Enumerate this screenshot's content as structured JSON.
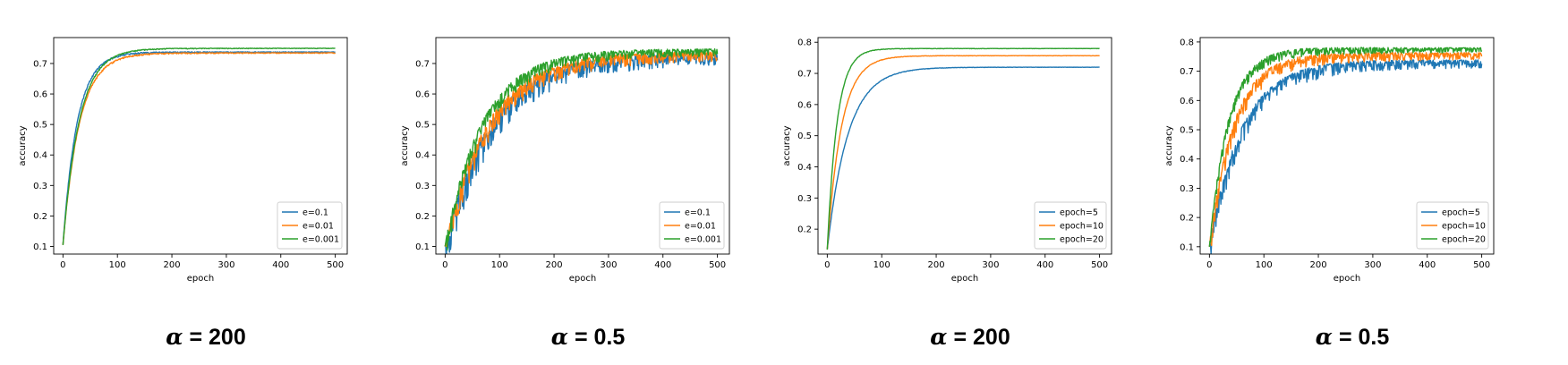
{
  "chart_data": [
    {
      "type": "line",
      "caption": {
        "symbol": "α",
        "text": " = 200"
      },
      "xlabel": "epoch",
      "ylabel": "accuracy",
      "xlim": [
        -17,
        522
      ],
      "ylim": [
        0.075,
        0.785
      ],
      "xticks": [
        0,
        100,
        200,
        300,
        400,
        500
      ],
      "yticks": [
        0.1,
        0.2,
        0.3,
        0.4,
        0.5,
        0.6,
        0.7
      ],
      "legend_position": "lower-right",
      "series": [
        {
          "name": "e=0.1",
          "color": "#1f77b4",
          "start": 0.105,
          "end": 0.738,
          "tau": 26,
          "noise": 0.003
        },
        {
          "name": "e=0.01",
          "color": "#ff7f0e",
          "start": 0.105,
          "end": 0.735,
          "tau": 30,
          "noise": 0.003
        },
        {
          "name": "e=0.001",
          "color": "#2ca02c",
          "start": 0.105,
          "end": 0.75,
          "tau": 30,
          "noise": 0.002
        }
      ]
    },
    {
      "type": "line",
      "caption": {
        "symbol": "α",
        "text": " = 0.5"
      },
      "xlabel": "epoch",
      "ylabel": "accuracy",
      "xlim": [
        -17,
        522
      ],
      "ylim": [
        0.075,
        0.785
      ],
      "xticks": [
        0,
        100,
        200,
        300,
        400,
        500
      ],
      "yticks": [
        0.1,
        0.2,
        0.3,
        0.4,
        0.5,
        0.6,
        0.7
      ],
      "legend_position": "lower-right",
      "series": [
        {
          "name": "e=0.1",
          "color": "#1f77b4",
          "start": 0.1,
          "end": 0.73,
          "tau": 85,
          "noise": 0.05
        },
        {
          "name": "e=0.01",
          "color": "#ff7f0e",
          "start": 0.1,
          "end": 0.735,
          "tau": 80,
          "noise": 0.04
        },
        {
          "name": "e=0.001",
          "color": "#2ca02c",
          "start": 0.1,
          "end": 0.745,
          "tau": 70,
          "noise": 0.03
        }
      ]
    },
    {
      "type": "line",
      "caption": {
        "symbol": "α",
        "text": " = 200"
      },
      "xlabel": "epoch",
      "ylabel": "accuracy",
      "xlim": [
        -17,
        522
      ],
      "ylim": [
        0.12,
        0.815
      ],
      "xticks": [
        0,
        100,
        200,
        300,
        400,
        500
      ],
      "yticks": [
        0.2,
        0.3,
        0.4,
        0.5,
        0.6,
        0.7,
        0.8
      ],
      "legend_position": "lower-right",
      "series": [
        {
          "name": "epoch=5",
          "color": "#1f77b4",
          "start": 0.135,
          "end": 0.72,
          "tau": 38,
          "noise": 0.001
        },
        {
          "name": "epoch=10",
          "color": "#ff7f0e",
          "start": 0.135,
          "end": 0.757,
          "tau": 26,
          "noise": 0.001
        },
        {
          "name": "epoch=20",
          "color": "#2ca02c",
          "start": 0.135,
          "end": 0.78,
          "tau": 18,
          "noise": 0.001
        }
      ]
    },
    {
      "type": "line",
      "caption": {
        "symbol": "α",
        "text": " = 0.5"
      },
      "xlabel": "epoch",
      "ylabel": "accuracy",
      "xlim": [
        -17,
        522
      ],
      "ylim": [
        0.075,
        0.815
      ],
      "xticks": [
        0,
        100,
        200,
        300,
        400,
        500
      ],
      "yticks": [
        0.1,
        0.2,
        0.3,
        0.4,
        0.5,
        0.6,
        0.7,
        0.8
      ],
      "legend_position": "lower-right",
      "series": [
        {
          "name": "epoch=5",
          "color": "#1f77b4",
          "start": 0.1,
          "end": 0.735,
          "tau": 60,
          "noise": 0.035
        },
        {
          "name": "epoch=10",
          "color": "#ff7f0e",
          "start": 0.1,
          "end": 0.76,
          "tau": 45,
          "noise": 0.03
        },
        {
          "name": "epoch=20",
          "color": "#2ca02c",
          "start": 0.1,
          "end": 0.778,
          "tau": 35,
          "noise": 0.02
        }
      ]
    }
  ]
}
